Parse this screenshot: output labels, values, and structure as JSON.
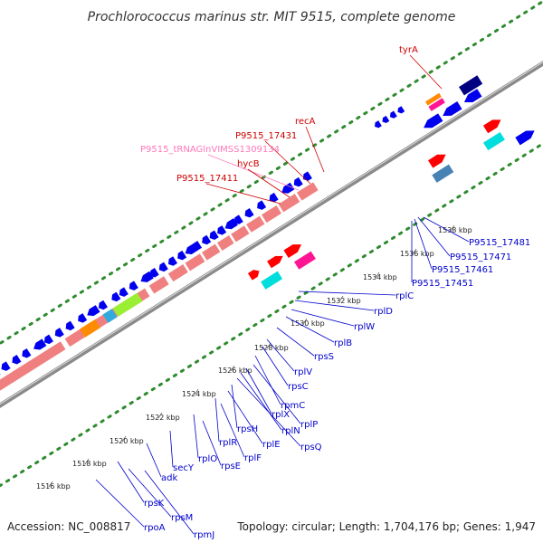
{
  "title": "Prochlorococcus marinus str. MIT 9515, complete genome",
  "footer": {
    "accession": "Accession: NC_008817",
    "summary": "Topology: circular; Length: 1,704,176 bp; Genes: 1,947"
  },
  "colors": {
    "backbone": "#8a8a8a",
    "dotted_track": "#2e8b2e",
    "forward_label": "#cc0000",
    "reverse_label": "#0000cc",
    "trna_label": "#ff77bb",
    "gene_blue": "#0000ee",
    "gene_red": "#ff0000",
    "gene_pink_block": "#f08080",
    "gene_cyan": "#00dddd",
    "gene_magenta": "#ff1493",
    "gene_orange": "#ff8c00",
    "gene_green": "#9aee33",
    "gene_steel": "#4682b4",
    "gene_navy": "#000080"
  },
  "ticks": [
    {
      "label": "1516 kbp"
    },
    {
      "label": "1518 kbp"
    },
    {
      "label": "1520 kbp"
    },
    {
      "label": "1522 kbp"
    },
    {
      "label": "1524 kbp"
    },
    {
      "label": "1526 kbp"
    },
    {
      "label": "1528 kbp"
    },
    {
      "label": "1530 kbp"
    },
    {
      "label": "1532 kbp"
    },
    {
      "label": "1534 kbp"
    },
    {
      "label": "1536 kbp"
    },
    {
      "label": "1538 kbp"
    }
  ],
  "forward_labels": [
    {
      "text": "tyrA",
      "kind": "gene"
    },
    {
      "text": "recA",
      "kind": "gene"
    },
    {
      "text": "P9515_17431",
      "kind": "gene"
    },
    {
      "text": "P9515_tRNAGlnVIMSS1309134",
      "kind": "trna"
    },
    {
      "text": "hycB",
      "kind": "gene"
    },
    {
      "text": "P9515_17411",
      "kind": "gene"
    }
  ],
  "reverse_labels": [
    {
      "text": "P9515_17481"
    },
    {
      "text": "P9515_17471"
    },
    {
      "text": "P9515_17461"
    },
    {
      "text": "P9515_17451"
    },
    {
      "text": "rplC"
    },
    {
      "text": "rplD"
    },
    {
      "text": "rplW"
    },
    {
      "text": "rplB"
    },
    {
      "text": "rpsS"
    },
    {
      "text": "rplV"
    },
    {
      "text": "rpsC"
    },
    {
      "text": "rpmC"
    },
    {
      "text": "rplP"
    },
    {
      "text": "rplX"
    },
    {
      "text": "rplN"
    },
    {
      "text": "rpsQ"
    },
    {
      "text": "rpsH"
    },
    {
      "text": "rplE"
    },
    {
      "text": "rplR"
    },
    {
      "text": "rplF"
    },
    {
      "text": "rplO"
    },
    {
      "text": "rpsE"
    },
    {
      "text": "secY"
    },
    {
      "text": "adk"
    },
    {
      "text": "rpsK"
    },
    {
      "text": "rpsM"
    },
    {
      "text": "rpoA"
    },
    {
      "text": "rpmJ"
    }
  ]
}
